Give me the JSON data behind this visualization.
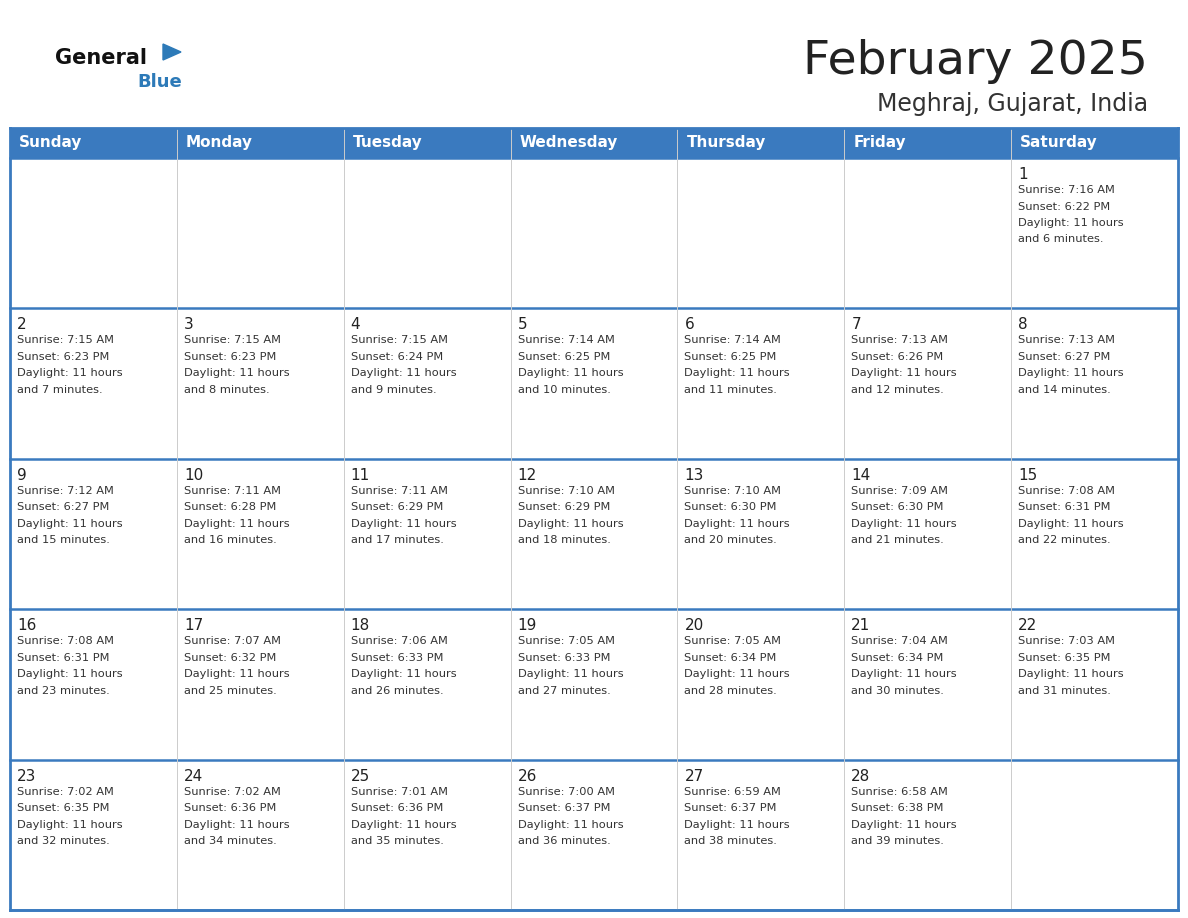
{
  "title": "February 2025",
  "subtitle": "Meghraj, Gujarat, India",
  "header_color": "#3a7abf",
  "header_text_color": "#ffffff",
  "cell_bg_top": "#ebebeb",
  "cell_bg_main": "#ffffff",
  "border_color": "#3a7abf",
  "thin_border_color": "#cccccc",
  "day_names": [
    "Sunday",
    "Monday",
    "Tuesday",
    "Wednesday",
    "Thursday",
    "Friday",
    "Saturday"
  ],
  "title_color": "#222222",
  "subtitle_color": "#333333",
  "day_number_color": "#222222",
  "info_color": "#333333",
  "logo_general_color": "#111111",
  "logo_blue_color": "#2d7ab8",
  "calendar": [
    [
      {
        "day": 0,
        "sunrise": "",
        "sunset": "",
        "daylight": ""
      },
      {
        "day": 0,
        "sunrise": "",
        "sunset": "",
        "daylight": ""
      },
      {
        "day": 0,
        "sunrise": "",
        "sunset": "",
        "daylight": ""
      },
      {
        "day": 0,
        "sunrise": "",
        "sunset": "",
        "daylight": ""
      },
      {
        "day": 0,
        "sunrise": "",
        "sunset": "",
        "daylight": ""
      },
      {
        "day": 0,
        "sunrise": "",
        "sunset": "",
        "daylight": ""
      },
      {
        "day": 1,
        "sunrise": "7:16 AM",
        "sunset": "6:22 PM",
        "daylight": "11 hours and 6 minutes."
      }
    ],
    [
      {
        "day": 2,
        "sunrise": "7:15 AM",
        "sunset": "6:23 PM",
        "daylight": "11 hours and 7 minutes."
      },
      {
        "day": 3,
        "sunrise": "7:15 AM",
        "sunset": "6:23 PM",
        "daylight": "11 hours and 8 minutes."
      },
      {
        "day": 4,
        "sunrise": "7:15 AM",
        "sunset": "6:24 PM",
        "daylight": "11 hours and 9 minutes."
      },
      {
        "day": 5,
        "sunrise": "7:14 AM",
        "sunset": "6:25 PM",
        "daylight": "11 hours and 10 minutes."
      },
      {
        "day": 6,
        "sunrise": "7:14 AM",
        "sunset": "6:25 PM",
        "daylight": "11 hours and 11 minutes."
      },
      {
        "day": 7,
        "sunrise": "7:13 AM",
        "sunset": "6:26 PM",
        "daylight": "11 hours and 12 minutes."
      },
      {
        "day": 8,
        "sunrise": "7:13 AM",
        "sunset": "6:27 PM",
        "daylight": "11 hours and 14 minutes."
      }
    ],
    [
      {
        "day": 9,
        "sunrise": "7:12 AM",
        "sunset": "6:27 PM",
        "daylight": "11 hours and 15 minutes."
      },
      {
        "day": 10,
        "sunrise": "7:11 AM",
        "sunset": "6:28 PM",
        "daylight": "11 hours and 16 minutes."
      },
      {
        "day": 11,
        "sunrise": "7:11 AM",
        "sunset": "6:29 PM",
        "daylight": "11 hours and 17 minutes."
      },
      {
        "day": 12,
        "sunrise": "7:10 AM",
        "sunset": "6:29 PM",
        "daylight": "11 hours and 18 minutes."
      },
      {
        "day": 13,
        "sunrise": "7:10 AM",
        "sunset": "6:30 PM",
        "daylight": "11 hours and 20 minutes."
      },
      {
        "day": 14,
        "sunrise": "7:09 AM",
        "sunset": "6:30 PM",
        "daylight": "11 hours and 21 minutes."
      },
      {
        "day": 15,
        "sunrise": "7:08 AM",
        "sunset": "6:31 PM",
        "daylight": "11 hours and 22 minutes."
      }
    ],
    [
      {
        "day": 16,
        "sunrise": "7:08 AM",
        "sunset": "6:31 PM",
        "daylight": "11 hours and 23 minutes."
      },
      {
        "day": 17,
        "sunrise": "7:07 AM",
        "sunset": "6:32 PM",
        "daylight": "11 hours and 25 minutes."
      },
      {
        "day": 18,
        "sunrise": "7:06 AM",
        "sunset": "6:33 PM",
        "daylight": "11 hours and 26 minutes."
      },
      {
        "day": 19,
        "sunrise": "7:05 AM",
        "sunset": "6:33 PM",
        "daylight": "11 hours and 27 minutes."
      },
      {
        "day": 20,
        "sunrise": "7:05 AM",
        "sunset": "6:34 PM",
        "daylight": "11 hours and 28 minutes."
      },
      {
        "day": 21,
        "sunrise": "7:04 AM",
        "sunset": "6:34 PM",
        "daylight": "11 hours and 30 minutes."
      },
      {
        "day": 22,
        "sunrise": "7:03 AM",
        "sunset": "6:35 PM",
        "daylight": "11 hours and 31 minutes."
      }
    ],
    [
      {
        "day": 23,
        "sunrise": "7:02 AM",
        "sunset": "6:35 PM",
        "daylight": "11 hours and 32 minutes."
      },
      {
        "day": 24,
        "sunrise": "7:02 AM",
        "sunset": "6:36 PM",
        "daylight": "11 hours and 34 minutes."
      },
      {
        "day": 25,
        "sunrise": "7:01 AM",
        "sunset": "6:36 PM",
        "daylight": "11 hours and 35 minutes."
      },
      {
        "day": 26,
        "sunrise": "7:00 AM",
        "sunset": "6:37 PM",
        "daylight": "11 hours and 36 minutes."
      },
      {
        "day": 27,
        "sunrise": "6:59 AM",
        "sunset": "6:37 PM",
        "daylight": "11 hours and 38 minutes."
      },
      {
        "day": 28,
        "sunrise": "6:58 AM",
        "sunset": "6:38 PM",
        "daylight": "11 hours and 39 minutes."
      },
      {
        "day": 0,
        "sunrise": "",
        "sunset": "",
        "daylight": ""
      }
    ]
  ]
}
